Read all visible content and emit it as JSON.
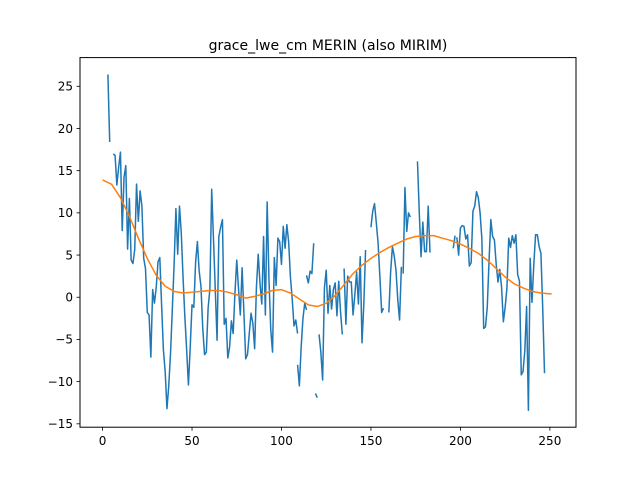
{
  "chart_data": {
    "type": "line",
    "title": "grace_lwe_cm MERIN (also MIRIM)",
    "xlabel": "",
    "ylabel": "",
    "xlim": [
      -12.6,
      264.6
    ],
    "ylim": [
      -15.4,
      28.4
    ],
    "x_ticks": [
      0,
      50,
      100,
      150,
      200,
      250
    ],
    "y_ticks": [
      -15,
      -10,
      -5,
      0,
      5,
      10,
      15,
      20,
      25
    ],
    "grid": false,
    "series": [
      {
        "color": "#1f77b4",
        "segments": [
          [
            [
              3,
              26.4
            ],
            [
              4,
              18.4
            ]
          ],
          [
            [
              6,
              17.0
            ],
            [
              7,
              16.8
            ],
            [
              8,
              13.3
            ],
            [
              9,
              15.4
            ],
            [
              10,
              17.2
            ],
            [
              11,
              7.9
            ],
            [
              12,
              14.2
            ],
            [
              13,
              15.6
            ],
            [
              14,
              5.7
            ],
            [
              15,
              11.7
            ],
            [
              16,
              4.4
            ],
            [
              17,
              4.0
            ],
            [
              18,
              5.7
            ],
            [
              19,
              13.4
            ],
            [
              20,
              9.0
            ],
            [
              21,
              12.6
            ],
            [
              22,
              10.8
            ],
            [
              23,
              4.6
            ],
            [
              24,
              3.4
            ],
            [
              25,
              -1.8
            ],
            [
              26,
              -2.1
            ],
            [
              27,
              -7.1
            ],
            [
              28,
              0.9
            ],
            [
              29,
              -0.7
            ],
            [
              30,
              1.2
            ],
            [
              31,
              4.2
            ],
            [
              32,
              4.7
            ],
            [
              33,
              -0.9
            ],
            [
              34,
              -6.2
            ],
            [
              35,
              -8.8
            ],
            [
              36,
              -13.2
            ],
            [
              37,
              -10.5
            ],
            [
              38,
              -6.6
            ],
            [
              39,
              -1.4
            ],
            [
              40,
              3.9
            ],
            [
              41,
              10.5
            ],
            [
              42,
              5.1
            ],
            [
              43,
              10.8
            ],
            [
              44,
              7.6
            ],
            [
              45,
              2.3
            ],
            [
              46,
              -2.3
            ],
            [
              47,
              -6.2
            ],
            [
              48,
              -10.4
            ],
            [
              49,
              -5.9
            ],
            [
              50,
              -0.9
            ],
            [
              51,
              -1.2
            ],
            [
              52,
              4.1
            ],
            [
              53,
              6.6
            ],
            [
              54,
              3.1
            ],
            [
              55,
              1.3
            ],
            [
              56,
              -3.7
            ],
            [
              57,
              -6.8
            ],
            [
              58,
              -6.5
            ],
            [
              59,
              -1.3
            ],
            [
              60,
              1.0
            ],
            [
              61,
              12.8
            ],
            [
              62,
              6.9
            ],
            [
              63,
              0.9
            ],
            [
              64,
              -5.1
            ],
            [
              65,
              7.2
            ],
            [
              66,
              8.3
            ],
            [
              67,
              9.2
            ],
            [
              68,
              -3.2
            ],
            [
              69,
              -2.5
            ],
            [
              70,
              -7.2
            ],
            [
              71,
              -5.9
            ],
            [
              72,
              -2.8
            ],
            [
              73,
              -4.3
            ],
            [
              74,
              0.5
            ],
            [
              75,
              4.4
            ],
            [
              76,
              1.0
            ],
            [
              77,
              -2.1
            ],
            [
              78,
              3.5
            ],
            [
              79,
              -1.8
            ],
            [
              80,
              -7.3
            ],
            [
              81,
              -6.8
            ],
            [
              82,
              -4.3
            ],
            [
              83,
              -1.9
            ],
            [
              84,
              -3.1
            ],
            [
              85,
              -6.1
            ],
            [
              86,
              1.2
            ],
            [
              87,
              5.1
            ],
            [
              88,
              1.6
            ],
            [
              89,
              -0.8
            ],
            [
              90,
              7.2
            ],
            [
              91,
              -2.1
            ],
            [
              92,
              11.3
            ],
            [
              93,
              2.2
            ],
            [
              94,
              -3.8
            ],
            [
              95,
              -6.5
            ],
            [
              96,
              4.7
            ],
            [
              97,
              1.4
            ],
            [
              98,
              7.0
            ],
            [
              99,
              6.6
            ],
            [
              100,
              3.9
            ],
            [
              101,
              8.4
            ],
            [
              102,
              5.8
            ],
            [
              103,
              8.6
            ],
            [
              104,
              6.6
            ],
            [
              105,
              2.4
            ],
            [
              106,
              -0.2
            ],
            [
              107,
              -3.4
            ],
            [
              108,
              -2.7
            ],
            [
              109,
              -4.3
            ]
          ],
          [
            [
              109,
              -8.0
            ],
            [
              110,
              -10.5
            ],
            [
              111,
              -5.9
            ],
            [
              112,
              -2.5
            ],
            [
              113,
              -0.7
            ],
            [
              114,
              -1.5
            ]
          ],
          [
            [
              114,
              2.6
            ],
            [
              115,
              1.7
            ],
            [
              116,
              3.1
            ],
            [
              117,
              2.8
            ],
            [
              118,
              6.4
            ]
          ],
          [
            [
              119,
              -11.4
            ],
            [
              120,
              -11.9
            ]
          ],
          [
            [
              121,
              -4.4
            ],
            [
              122,
              -6.5
            ],
            [
              123,
              -9.8
            ],
            [
              124,
              1.1
            ],
            [
              125,
              3.2
            ],
            [
              126,
              -1.9
            ],
            [
              127,
              1.4
            ],
            [
              128,
              -1.4
            ],
            [
              129,
              0.9
            ],
            [
              130,
              1.7
            ],
            [
              131,
              -2.2
            ],
            [
              132,
              1.9
            ],
            [
              133,
              -1.7
            ],
            [
              134,
              -4.4
            ]
          ],
          [
            [
              135,
              3.4
            ],
            [
              136,
              -3.2
            ],
            [
              137,
              2.5
            ],
            [
              138,
              1.8
            ],
            [
              139,
              1.8
            ],
            [
              140,
              -2.1
            ],
            [
              141,
              0.3
            ],
            [
              142,
              3.0
            ],
            [
              143,
              -0.8
            ],
            [
              144,
              4.8
            ],
            [
              145,
              -5.4
            ],
            [
              146,
              -0.9
            ],
            [
              147,
              5.6
            ]
          ],
          [
            [
              150,
              8.3
            ],
            [
              151,
              10.2
            ],
            [
              152,
              11.1
            ],
            [
              153,
              8.8
            ],
            [
              154,
              6.4
            ],
            [
              155,
              2.4
            ],
            [
              156,
              -1.8
            ],
            [
              157,
              -1.3
            ]
          ],
          [
            [
              160,
              -1.8
            ],
            [
              161,
              3.0
            ],
            [
              162,
              6.0
            ],
            [
              163,
              4.9
            ],
            [
              164,
              3.2
            ],
            [
              165,
              -0.3
            ],
            [
              166,
              -2.7
            ],
            [
              167,
              3.6
            ]
          ],
          [
            [
              168,
              2.8
            ],
            [
              169,
              13.0
            ],
            [
              170,
              7.8
            ],
            [
              171,
              10.0
            ],
            [
              172,
              9.5
            ]
          ],
          [
            [
              176,
              16.1
            ],
            [
              177,
              10.1
            ],
            [
              178,
              4.8
            ],
            [
              179,
              8.9
            ],
            [
              180,
              5.4
            ],
            [
              181,
              5.4
            ],
            [
              182,
              10.8
            ],
            [
              183,
              5.3
            ]
          ],
          [
            [
              196,
              5.8
            ],
            [
              197,
              7.3
            ]
          ],
          [
            [
              198,
              7.1
            ],
            [
              199,
              5.0
            ],
            [
              200,
              8.2
            ],
            [
              201,
              8.5
            ],
            [
              202,
              8.4
            ],
            [
              203,
              6.9
            ],
            [
              204,
              7.4
            ],
            [
              205,
              3.7
            ],
            [
              206,
              4.1
            ],
            [
              207,
              10.2
            ],
            [
              208,
              10.8
            ],
            [
              209,
              12.5
            ],
            [
              210,
              11.8
            ],
            [
              211,
              10.0
            ],
            [
              212,
              6.9
            ],
            [
              213,
              -3.7
            ],
            [
              214,
              -3.5
            ],
            [
              215,
              -1.2
            ],
            [
              216,
              4.3
            ],
            [
              217,
              9.2
            ],
            [
              218,
              7.2
            ],
            [
              219,
              6.8
            ],
            [
              220,
              3.9
            ],
            [
              221,
              1.8
            ],
            [
              222,
              3.3
            ],
            [
              223,
              1.2
            ],
            [
              224,
              -2.9
            ],
            [
              225,
              -1.2
            ],
            [
              226,
              1.1
            ],
            [
              227,
              7.0
            ],
            [
              228,
              5.9
            ],
            [
              229,
              7.3
            ],
            [
              230,
              6.4
            ],
            [
              231,
              7.4
            ],
            [
              232,
              2.7
            ],
            [
              233,
              1.9
            ],
            [
              234,
              -9.2
            ],
            [
              235,
              -8.8
            ],
            [
              236,
              -6.3
            ],
            [
              237,
              -1.1
            ],
            [
              238,
              -13.4
            ],
            [
              239,
              4.6
            ],
            [
              240,
              -0.6
            ],
            [
              241,
              3.8
            ],
            [
              242,
              7.4
            ],
            [
              243,
              7.4
            ],
            [
              244,
              6.0
            ],
            [
              245,
              5.2
            ],
            [
              246,
              -1.3
            ],
            [
              247,
              -9.0
            ]
          ]
        ]
      },
      {
        "color": "#ff7f0e",
        "segments": [
          [
            [
              0,
              13.9
            ],
            [
              5,
              13.4
            ],
            [
              10,
              11.8
            ],
            [
              15,
              9.6
            ],
            [
              20,
              7.0
            ],
            [
              25,
              4.6
            ],
            [
              30,
              2.6
            ],
            [
              35,
              1.3
            ],
            [
              40,
              0.7
            ],
            [
              45,
              0.5
            ],
            [
              50,
              0.6
            ],
            [
              55,
              0.7
            ],
            [
              60,
              0.8
            ],
            [
              65,
              0.8
            ],
            [
              70,
              0.6
            ],
            [
              75,
              0.3
            ],
            [
              80,
              -0.1
            ],
            [
              85,
              0.1
            ],
            [
              90,
              0.4
            ],
            [
              95,
              0.8
            ],
            [
              100,
              0.9
            ],
            [
              105,
              0.5
            ],
            [
              110,
              -0.2
            ],
            [
              115,
              -0.9
            ],
            [
              120,
              -1.1
            ],
            [
              125,
              -0.7
            ],
            [
              130,
              0.2
            ],
            [
              135,
              1.5
            ],
            [
              140,
              2.8
            ],
            [
              145,
              3.8
            ],
            [
              150,
              4.6
            ],
            [
              155,
              5.3
            ],
            [
              160,
              5.9
            ],
            [
              165,
              6.4
            ],
            [
              170,
              6.9
            ],
            [
              175,
              7.2
            ],
            [
              180,
              7.3
            ],
            [
              185,
              7.3
            ],
            [
              190,
              7.0
            ],
            [
              195,
              6.7
            ],
            [
              200,
              6.3
            ],
            [
              205,
              5.8
            ],
            [
              210,
              5.2
            ],
            [
              215,
              4.4
            ],
            [
              220,
              3.4
            ],
            [
              225,
              2.4
            ],
            [
              230,
              1.6
            ],
            [
              235,
              1.1
            ],
            [
              240,
              0.7
            ],
            [
              245,
              0.5
            ],
            [
              250,
              0.4
            ],
            [
              251,
              0.4
            ]
          ]
        ]
      }
    ]
  }
}
